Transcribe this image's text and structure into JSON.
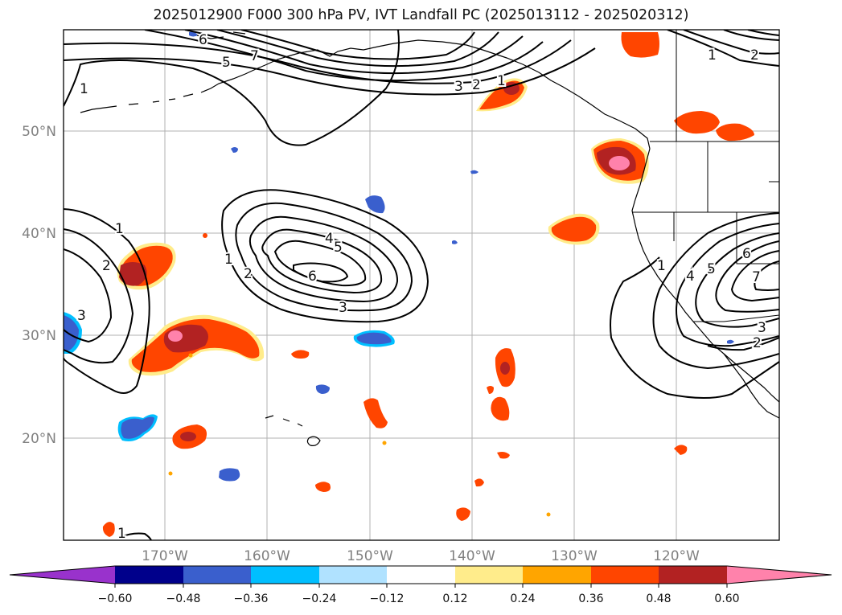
{
  "title": "2025012900 F000 300 hPa PV, IVT Landfall PC (2025013112 - 2025020312)",
  "lat_labels": [
    "50°N",
    "40°N",
    "30°N",
    "20°N"
  ],
  "lon_labels": [
    "170°W",
    "160°W",
    "150°W",
    "140°W",
    "130°W",
    "120°W"
  ],
  "colorbar": {
    "tick_labels": [
      "−0.60",
      "−0.48",
      "−0.36",
      "−0.24",
      "−0.12",
      "0.12",
      "0.24",
      "0.36",
      "0.48",
      "0.60"
    ],
    "colors": [
      "#9932cc",
      "#00008b",
      "#3a5fcd",
      "#00bfff",
      "#b0e2ff",
      "#ffffff",
      "#ffec8b",
      "#ffa500",
      "#ff4500",
      "#b22222",
      "#ff82ab"
    ]
  },
  "contour_labels": [
    "6",
    "5",
    "7",
    "1",
    "3",
    "2",
    "1",
    "4",
    "3",
    "2",
    "1",
    "2",
    "3",
    "1",
    "4",
    "5",
    "6",
    "3",
    "1",
    "2",
    "1",
    "4",
    "5",
    "6",
    "7",
    "3",
    "2"
  ]
}
